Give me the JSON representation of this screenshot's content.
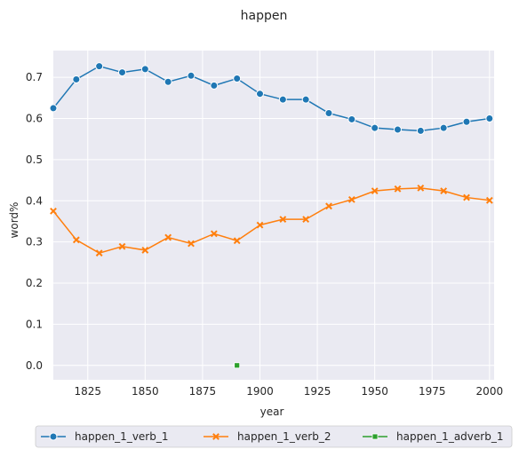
{
  "chart_data": {
    "type": "line",
    "title": "happen",
    "xlabel": "year",
    "ylabel": "word%",
    "xlim": [
      1810,
      2002
    ],
    "ylim": [
      -0.035,
      0.765
    ],
    "x_ticks": [
      1825,
      1850,
      1875,
      1900,
      1925,
      1950,
      1975,
      2000
    ],
    "y_ticks": [
      0.0,
      0.1,
      0.2,
      0.3,
      0.4,
      0.5,
      0.6,
      0.7
    ],
    "x_tick_labels": [
      "1825",
      "1850",
      "1875",
      "1900",
      "1925",
      "1950",
      "1975",
      "2000"
    ],
    "y_tick_labels": [
      "0.0",
      "0.1",
      "0.2",
      "0.3",
      "0.4",
      "0.5",
      "0.6",
      "0.7"
    ],
    "grid": true,
    "legend_position": "bottom-center",
    "series": [
      {
        "name": "happen_1_verb_1",
        "color": "#1f77b4",
        "marker": "circle",
        "x": [
          1810,
          1820,
          1830,
          1840,
          1850,
          1860,
          1870,
          1880,
          1890,
          1900,
          1910,
          1920,
          1930,
          1940,
          1950,
          1960,
          1970,
          1980,
          1990,
          2000
        ],
        "y": [
          0.625,
          0.695,
          0.727,
          0.712,
          0.72,
          0.689,
          0.704,
          0.68,
          0.697,
          0.66,
          0.646,
          0.646,
          0.613,
          0.598,
          0.577,
          0.573,
          0.57,
          0.577,
          0.592,
          0.6
        ]
      },
      {
        "name": "happen_1_verb_2",
        "color": "#ff7f0e",
        "marker": "x",
        "x": [
          1810,
          1820,
          1830,
          1840,
          1850,
          1860,
          1870,
          1880,
          1890,
          1900,
          1910,
          1920,
          1930,
          1940,
          1950,
          1960,
          1970,
          1980,
          1990,
          2000
        ],
        "y": [
          0.375,
          0.305,
          0.273,
          0.289,
          0.28,
          0.311,
          0.296,
          0.32,
          0.303,
          0.341,
          0.355,
          0.355,
          0.387,
          0.403,
          0.424,
          0.429,
          0.431,
          0.424,
          0.408,
          0.401
        ]
      },
      {
        "name": "happen_1_adverb_1",
        "color": "#2ca02c",
        "marker": "square",
        "x": [
          1890
        ],
        "y": [
          0.0
        ]
      }
    ]
  }
}
